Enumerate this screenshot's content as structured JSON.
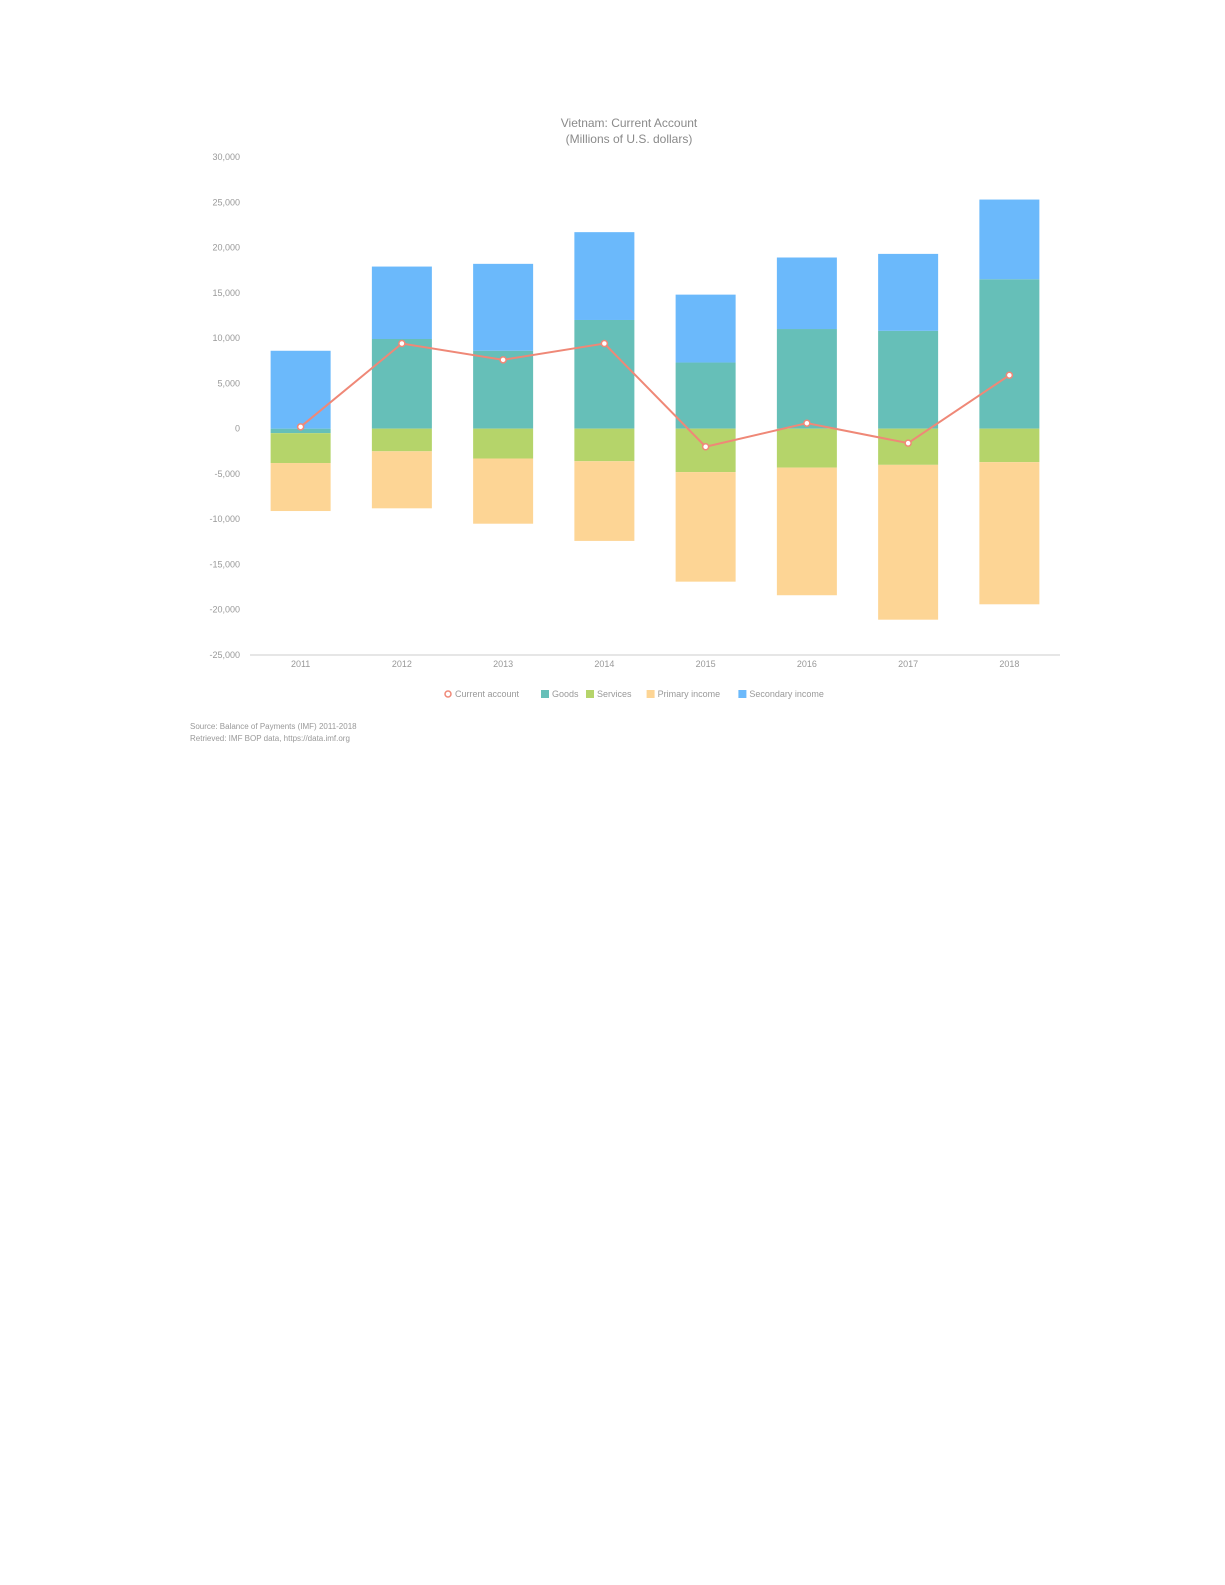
{
  "chart_data": {
    "type": "bar",
    "stacked": true,
    "title": "Vietnam: Current Account",
    "subtitle": "(Millions of U.S. dollars)",
    "categories": [
      "2011",
      "2012",
      "2013",
      "2014",
      "2015",
      "2016",
      "2017",
      "2018"
    ],
    "ylim": [
      -25000,
      30000
    ],
    "yticks": [
      30000,
      25000,
      20000,
      15000,
      10000,
      5000,
      0,
      -5000,
      -10000,
      -15000,
      -20000,
      -25000
    ],
    "ytick_labels": [
      "30,000",
      "25,000",
      "20,000",
      "15,000",
      "10,000",
      "5,000",
      "0",
      "-5,000",
      "-10,000",
      "-15,000",
      "-20,000",
      "-25,000"
    ],
    "series": [
      {
        "name": "Goods",
        "color": "#66bfb8",
        "values": [
          -500,
          9900,
          8600,
          12000,
          7300,
          11000,
          10800,
          16500
        ]
      },
      {
        "name": "Services",
        "color": "#b5d46a",
        "values": [
          -3300,
          -2500,
          -3300,
          -3600,
          -4800,
          -4300,
          -4000,
          -3700
        ]
      },
      {
        "name": "Primary income",
        "color": "#fdd595",
        "values": [
          -5300,
          -6300,
          -7200,
          -8800,
          -12100,
          -14100,
          -17100,
          -15700
        ]
      },
      {
        "name": "Secondary income",
        "color": "#6bb9fb",
        "values": [
          8600,
          8000,
          9600,
          9700,
          7500,
          7900,
          8500,
          8800
        ]
      },
      {
        "name": "Current account",
        "type": "line",
        "color": "#ef8877",
        "values": [
          200,
          9400,
          7600,
          9400,
          -2000,
          600,
          -1600,
          5900
        ]
      }
    ],
    "legend_order": [
      "Current account",
      "Goods",
      "Services",
      "Primary income",
      "Secondary income"
    ],
    "legend": "bottom-center",
    "source_lines": [
      "Source: Balance of Payments (IMF) 2011-2018",
      "Retrieved: IMF BOP data, https://data.imf.org"
    ]
  }
}
